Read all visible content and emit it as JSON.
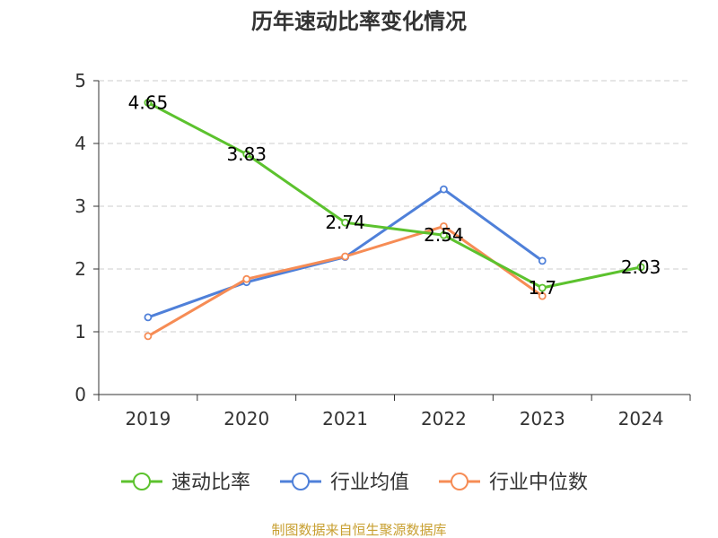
{
  "chart_data": {
    "type": "line",
    "title": "历年速动比率变化情况",
    "xlabel": "",
    "ylabel": "",
    "categories": [
      "2019",
      "2020",
      "2021",
      "2022",
      "2023",
      "2024"
    ],
    "ylim": [
      0,
      5
    ],
    "yticks": [
      "0",
      "1",
      "2",
      "3",
      "4",
      "5"
    ],
    "grid": true,
    "legend_position": "bottom",
    "series": [
      {
        "name": "速动比率",
        "color": "#5cc22e",
        "values": [
          4.65,
          3.83,
          2.74,
          2.54,
          1.7,
          2.03
        ],
        "labels": [
          "4.65",
          "3.83",
          "2.74",
          "2.54",
          "1.7",
          "2.03"
        ]
      },
      {
        "name": "行业均值",
        "color": "#4f80d9",
        "values": [
          1.23,
          1.79,
          2.19,
          3.27,
          2.13,
          null
        ]
      },
      {
        "name": "行业中位数",
        "color": "#f68c55",
        "values": [
          0.93,
          1.84,
          2.2,
          2.68,
          1.57,
          null
        ]
      }
    ]
  },
  "footer": {
    "source": "制图数据来自恒生聚源数据库"
  }
}
